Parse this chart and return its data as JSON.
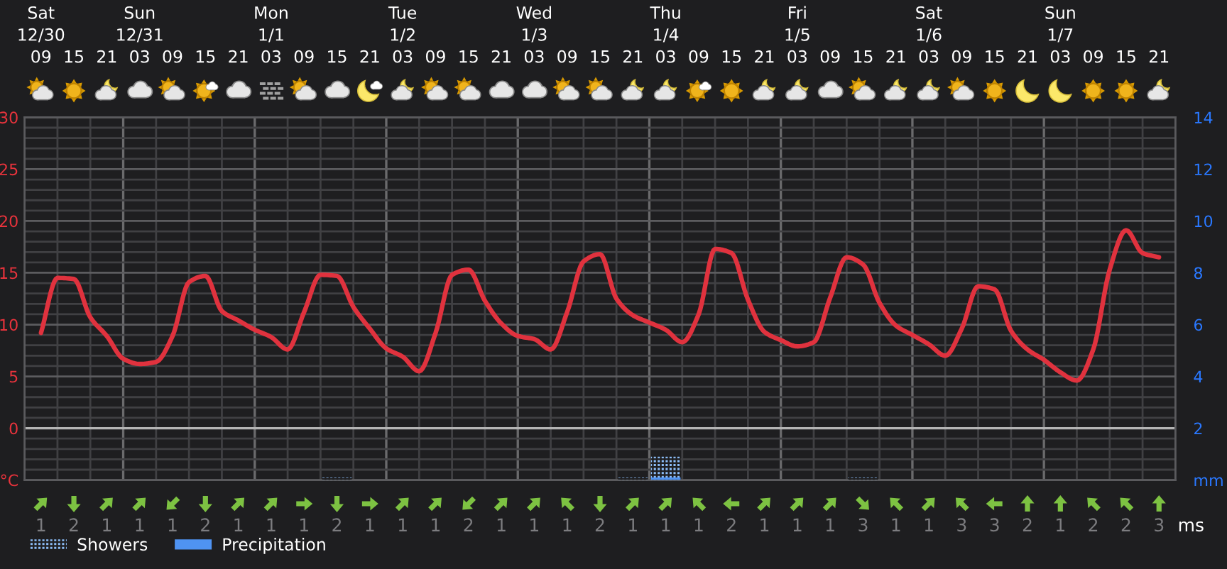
{
  "chart_data": [
    {
      "type": "line",
      "categories": [
        "Sat\n12/30\n09",
        null,
        "15",
        null,
        "21",
        null,
        "Sun\n12/31\n03",
        null,
        "09",
        null,
        "15",
        null,
        "21",
        null,
        "Mon\n1/1\n03",
        null,
        "09",
        null,
        "15",
        null,
        "21",
        null,
        "Tue\n1/2\n03",
        null,
        "09",
        null,
        "15",
        null,
        "21",
        null,
        "Wed\n1/3\n03",
        null,
        "09",
        null,
        "15",
        null,
        "21",
        null,
        "Thu\n1/4\n03",
        null,
        "09",
        null,
        "15",
        null,
        "21",
        null,
        "Fri\n1/5\n03",
        null,
        "09",
        null,
        "15",
        null,
        "21",
        null,
        "Sat\n1/6\n03",
        null,
        "09",
        null,
        "15",
        null,
        "21",
        null,
        "Sun\n1/7\n03",
        null,
        "09",
        null,
        "15",
        null,
        "21"
      ],
      "ylim": [
        -5,
        30
      ],
      "yticks": [
        {
          "value": -5,
          "label": "°C"
        },
        {
          "value": -4,
          "label": null
        },
        {
          "value": -3,
          "label": null
        },
        {
          "value": -2,
          "label": null
        },
        {
          "value": -1,
          "label": null
        },
        0,
        {
          "value": 1,
          "label": null
        },
        {
          "value": 2,
          "label": null
        },
        {
          "value": 3,
          "label": null
        },
        {
          "value": 4,
          "label": null
        },
        5,
        {
          "value": 6,
          "label": null
        },
        {
          "value": 7,
          "label": null
        },
        {
          "value": 8,
          "label": null
        },
        {
          "value": 9,
          "label": null
        },
        10,
        {
          "value": 11,
          "label": null
        },
        {
          "value": 12,
          "label": null
        },
        {
          "value": 13,
          "label": null
        },
        {
          "value": 14,
          "label": null
        },
        15,
        {
          "value": 16,
          "label": null
        },
        {
          "value": 17,
          "label": null
        },
        {
          "value": 18,
          "label": null
        },
        {
          "value": 19,
          "label": null
        },
        20,
        {
          "value": 21,
          "label": null
        },
        {
          "value": 22,
          "label": null
        },
        {
          "value": 23,
          "label": null
        },
        {
          "value": 24,
          "label": null
        },
        25,
        {
          "value": 26,
          "label": null
        },
        {
          "value": 27,
          "label": null
        },
        {
          "value": 28,
          "label": null
        },
        {
          "value": 29,
          "label": null
        },
        30
      ],
      "y2lim": [
        0,
        14
      ],
      "y2ticks": [
        {
          "value": 0,
          "label": "mm"
        },
        2,
        4,
        6,
        8,
        10,
        12,
        14
      ],
      "grid": true,
      "legend": "bottom left",
      "ref_lines": [
        {
          "axis": "y",
          "value": 0,
          "color": "#b4b4b4"
        }
      ],
      "series": [
        {
          "type": "line",
          "color": "#e0323e",
          "values": [
            9.2,
            14.5,
            14.4,
            10.7,
            8.9,
            6.7,
            6.2,
            6.4,
            8.9,
            14.1,
            14.7,
            11.3,
            10.4,
            9.5,
            8.8,
            7.6,
            11.2,
            14.8,
            14.7,
            11.7,
            9.6,
            7.7,
            6.9,
            5.5,
            9.2,
            14.8,
            15.3,
            12.3,
            10.1,
            8.9,
            8.6,
            7.6,
            11.2,
            16.1,
            16.8,
            12.5,
            10.9,
            10.2,
            9.5,
            8.3,
            11.0,
            17.3,
            16.9,
            12.4,
            9.3,
            8.5,
            7.9,
            8.3,
            12.6,
            16.5,
            15.8,
            12.1,
            9.9,
            9.0,
            8.1,
            7.0,
            9.6,
            13.7,
            13.4,
            9.4,
            7.6,
            6.6,
            5.4,
            4.6,
            7.6,
            15.3,
            19.1,
            16.9,
            16.5
          ]
        },
        {
          "name": "Showers",
          "type": "bar",
          "axis": "y2",
          "color": "#8cbcf6",
          "values": [
            null,
            null,
            null,
            null,
            null,
            null,
            null,
            null,
            null,
            null,
            null,
            null,
            null,
            null,
            null,
            null,
            null,
            null,
            0.1,
            null,
            null,
            null,
            null,
            null,
            null,
            null,
            null,
            null,
            null,
            null,
            null,
            null,
            null,
            null,
            null,
            null,
            0.1,
            null,
            0.9,
            null,
            null,
            null,
            null,
            null,
            null,
            null,
            null,
            null,
            null,
            null,
            0.1,
            null,
            null,
            null,
            null,
            null,
            null,
            null,
            null,
            null,
            null,
            null,
            null,
            null,
            null,
            null,
            null,
            null,
            null
          ]
        },
        {
          "name": "Precipitation",
          "type": "bar",
          "axis": "y2",
          "color": "#4f93f2",
          "values": [
            null,
            null,
            null,
            null,
            null,
            null,
            null,
            null,
            null,
            null,
            null,
            null,
            null,
            null,
            null,
            null,
            null,
            null,
            null,
            null,
            null,
            null,
            null,
            null,
            null,
            null,
            null,
            null,
            null,
            null,
            null,
            null,
            null,
            null,
            null,
            null,
            null,
            null,
            0.1,
            null,
            null,
            null,
            null,
            null,
            null,
            null,
            null,
            null,
            null,
            null,
            null,
            null,
            null,
            null,
            null,
            null,
            null,
            null,
            null,
            null,
            null,
            null,
            null,
            null,
            null,
            null,
            null,
            null,
            null
          ]
        }
      ]
    },
    {
      "type": "other",
      "categories": [
        null,
        null,
        null,
        null,
        null,
        null,
        null,
        null,
        null,
        null,
        null,
        null,
        null,
        null,
        null,
        null,
        null,
        null,
        null,
        null,
        null,
        null,
        null,
        null,
        null,
        null,
        null,
        null,
        null,
        null,
        null,
        null,
        null,
        null,
        null
      ],
      "values": [
        1,
        2,
        1,
        1,
        1,
        2,
        1,
        1,
        1,
        2,
        1,
        1,
        1,
        2,
        1,
        1,
        1,
        2,
        1,
        1,
        1,
        2,
        1,
        1,
        1,
        3,
        1,
        1,
        3,
        3,
        2,
        1,
        2,
        2,
        3
      ],
      "data_labels": true,
      "ylabel": "ms"
    }
  ]
}
